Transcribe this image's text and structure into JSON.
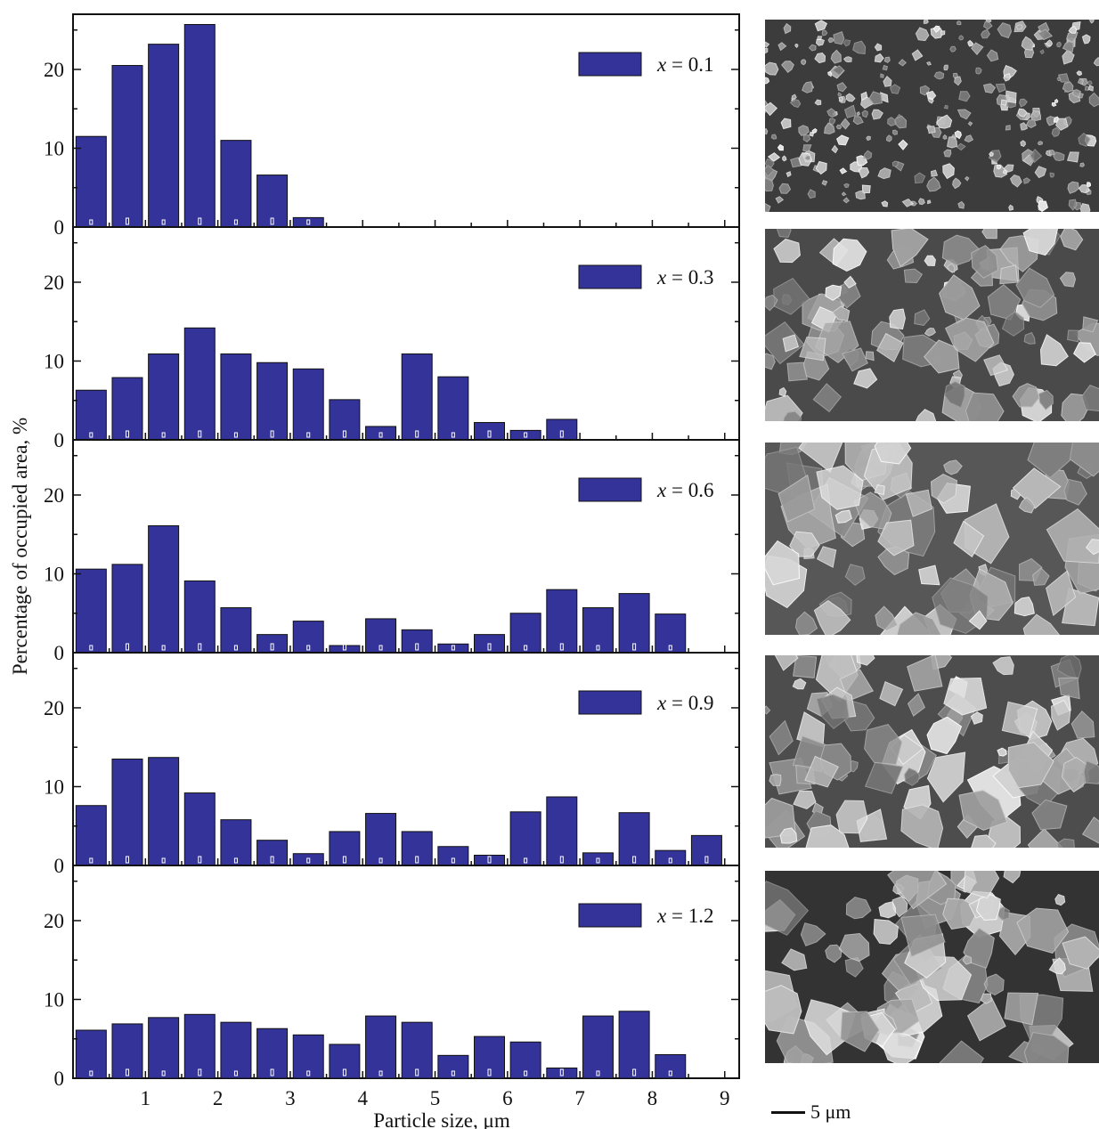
{
  "figure": {
    "ylabel": "Percentage of occupied area, %",
    "xlabel": "Particle size, μm",
    "scale_bar_label": "5 μm",
    "bar_color": "#333399",
    "x_ticks": [
      "1",
      "2",
      "3",
      "4",
      "5",
      "6",
      "7",
      "8",
      "9"
    ],
    "y_ticks": [
      "0",
      "10",
      "20"
    ]
  },
  "chart_data": [
    {
      "type": "bar",
      "legend": "x = 0.1",
      "x": [
        0.25,
        0.75,
        1.25,
        1.75,
        2.25,
        2.75,
        3.25
      ],
      "values": [
        11.5,
        20.5,
        23.2,
        25.7,
        11.0,
        6.6,
        1.2
      ],
      "xlim": [
        0,
        9.2
      ],
      "ylim": [
        0,
        27
      ],
      "xlabel": "Particle size, μm",
      "ylabel": "Percentage of occupied area, %",
      "grid": false,
      "legend_position": "top-right"
    },
    {
      "type": "bar",
      "legend": "x = 0.3",
      "x": [
        0.25,
        0.75,
        1.25,
        1.75,
        2.25,
        2.75,
        3.25,
        3.75,
        4.25,
        4.75,
        5.25,
        5.75,
        6.25,
        6.75
      ],
      "values": [
        6.3,
        7.9,
        10.9,
        14.2,
        10.9,
        9.8,
        9.0,
        5.1,
        1.7,
        10.9,
        8.0,
        2.2,
        1.2,
        2.6
      ],
      "xlim": [
        0,
        9.2
      ],
      "ylim": [
        0,
        27
      ],
      "xlabel": "Particle size, μm",
      "ylabel": "Percentage of occupied area, %",
      "grid": false,
      "legend_position": "top-right"
    },
    {
      "type": "bar",
      "legend": "x = 0.6",
      "x": [
        0.25,
        0.75,
        1.25,
        1.75,
        2.25,
        2.75,
        3.25,
        3.75,
        4.25,
        4.75,
        5.25,
        5.75,
        6.25,
        6.75,
        7.25,
        7.75,
        8.25
      ],
      "values": [
        10.6,
        11.2,
        16.1,
        9.1,
        5.7,
        2.3,
        4.0,
        0.9,
        4.3,
        2.9,
        1.1,
        2.3,
        5.0,
        8.0,
        5.7,
        7.5,
        4.9
      ],
      "xlim": [
        0,
        9.2
      ],
      "ylim": [
        0,
        27
      ],
      "xlabel": "Particle size, μm",
      "ylabel": "Percentage of occupied area, %",
      "grid": false,
      "legend_position": "top-right"
    },
    {
      "type": "bar",
      "legend": "x = 0.9",
      "x": [
        0.25,
        0.75,
        1.25,
        1.75,
        2.25,
        2.75,
        3.25,
        3.75,
        4.25,
        4.75,
        5.25,
        5.75,
        6.25,
        6.75,
        7.25,
        7.75,
        8.25,
        8.75
      ],
      "values": [
        7.6,
        13.5,
        13.7,
        9.2,
        5.8,
        3.2,
        1.5,
        4.3,
        6.6,
        4.3,
        2.4,
        1.3,
        6.8,
        8.7,
        1.6,
        6.7,
        1.9,
        3.8
      ],
      "xlim": [
        0,
        9.2
      ],
      "ylim": [
        0,
        27
      ],
      "xlabel": "Particle size, μm",
      "ylabel": "Percentage of occupied area, %",
      "grid": false,
      "legend_position": "top-right"
    },
    {
      "type": "bar",
      "legend": "x = 1.2",
      "x": [
        0.25,
        0.75,
        1.25,
        1.75,
        2.25,
        2.75,
        3.25,
        3.75,
        4.25,
        4.75,
        5.25,
        5.75,
        6.25,
        6.75,
        7.25,
        7.75,
        8.25
      ],
      "values": [
        6.1,
        6.9,
        7.7,
        8.1,
        7.1,
        6.3,
        5.5,
        4.3,
        7.9,
        7.1,
        2.9,
        5.3,
        4.6,
        1.3,
        7.9,
        8.5,
        3.0
      ],
      "xlim": [
        0,
        9.2
      ],
      "ylim": [
        0,
        27
      ],
      "xlabel": "Particle size, μm",
      "ylabel": "Percentage of occupied area, %",
      "grid": false,
      "legend_position": "top-right"
    }
  ]
}
